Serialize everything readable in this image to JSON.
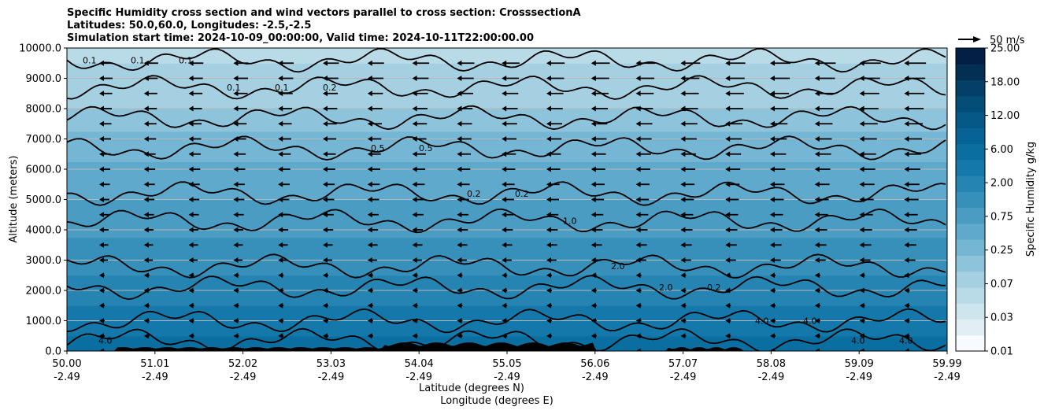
{
  "chart_data": {
    "type": "heatmap",
    "title_lines": [
      "Specific Humidity cross section and wind vectors parallel to cross section: CrosssectionA",
      "Latitudes: 50.0,60.0, Longitudes: -2.5,-2.5",
      "Simulation start time: 2024-10-09_00:00:00, Valid time: 2024-10-11T22:00:00.00"
    ],
    "ylabel": "Altitude (meters)",
    "xlabel_lines": [
      "Latitude (degrees N)",
      "Longitude (degrees E)"
    ],
    "ylim": [
      0,
      10000
    ],
    "y_ticks": [
      0,
      1000,
      2000,
      3000,
      4000,
      5000,
      6000,
      7000,
      8000,
      9000,
      10000
    ],
    "y_tick_labels": [
      "0.0",
      "1000.0",
      "2000.0",
      "3000.0",
      "4000.0",
      "5000.0",
      "6000.0",
      "7000.0",
      "8000.0",
      "9000.0",
      "10000.0"
    ],
    "x_ticks": [
      {
        "lat": "50.00",
        "lon": "-2.49"
      },
      {
        "lat": "51.01",
        "lon": "-2.49"
      },
      {
        "lat": "52.02",
        "lon": "-2.49"
      },
      {
        "lat": "53.03",
        "lon": "-2.49"
      },
      {
        "lat": "54.04",
        "lon": "-2.49"
      },
      {
        "lat": "55.05",
        "lon": "-2.49"
      },
      {
        "lat": "56.06",
        "lon": "-2.49"
      },
      {
        "lat": "57.07",
        "lon": "-2.49"
      },
      {
        "lat": "58.08",
        "lon": "-2.49"
      },
      {
        "lat": "59.09",
        "lon": "-2.49"
      },
      {
        "lat": "59.99",
        "lon": "-2.49"
      }
    ],
    "grid": "horizontal",
    "colorbar": {
      "label": "Specific Humidity g/kg",
      "tick_labels": [
        "0.01",
        "0.03",
        "0.07",
        "0.25",
        "0.75",
        "2.00",
        "6.00",
        "12.00",
        "18.00",
        "25.00"
      ],
      "colors": [
        "#f7fbff",
        "#e1eef3",
        "#cfe5ee",
        "#b9dbe8",
        "#a4d0e2",
        "#8dc4dc",
        "#74b6d4",
        "#5ea9cc",
        "#4a9cc3",
        "#3790ba",
        "#2584b2",
        "#1479aa",
        "#0b6ea0",
        "#066394",
        "#045987",
        "#034e78",
        "#033f67",
        "#032f55",
        "#031f45"
      ],
      "levels": 19
    },
    "wind_key": {
      "label": "50 m/s"
    },
    "contour_labels": [
      "0.1",
      "0.1",
      "0.1",
      "0.1",
      "0.1",
      "0.2",
      "0.5",
      "0.5",
      "0.2",
      "0.2",
      "1.0",
      "2.0",
      "2.0",
      "0.2",
      "4.0",
      "4.0",
      "4.0",
      "4.0",
      "4.0"
    ],
    "humidity_profile": [
      {
        "alt": 0,
        "value": 6.5
      },
      {
        "alt": 1000,
        "value": 4.0
      },
      {
        "alt": 2000,
        "value": 2.0
      },
      {
        "alt": 3000,
        "value": 1.5
      },
      {
        "alt": 4000,
        "value": 1.0
      },
      {
        "alt": 5000,
        "value": 0.6
      },
      {
        "alt": 6000,
        "value": 0.4
      },
      {
        "alt": 7000,
        "value": 0.25
      },
      {
        "alt": 8000,
        "value": 0.12
      },
      {
        "alt": 9000,
        "value": 0.08
      },
      {
        "alt": 10000,
        "value": 0.05
      }
    ]
  }
}
